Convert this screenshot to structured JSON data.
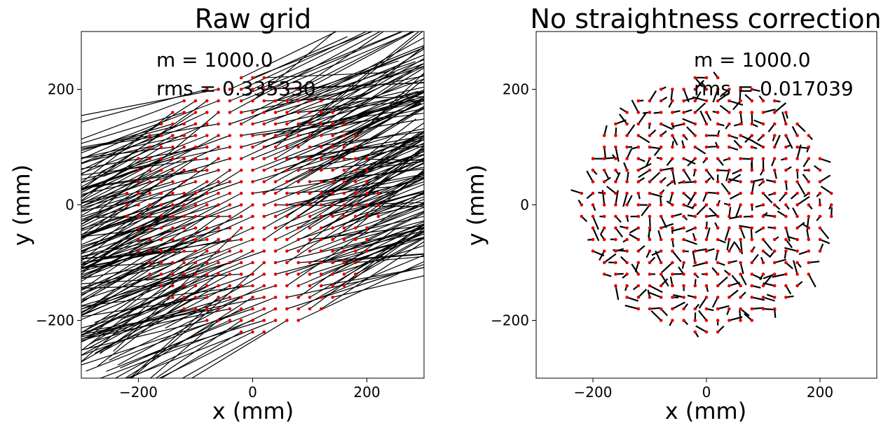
{
  "chart_data": [
    {
      "type": "scatter",
      "title": "Raw grid",
      "xlabel": "x (mm)",
      "ylabel": "y (mm)",
      "xlim": [
        -300,
        300
      ],
      "ylim": [
        -300,
        300
      ],
      "xticks": [
        -200,
        0,
        200
      ],
      "yticks": [
        -200,
        0,
        200
      ],
      "xtick_labels": [
        "−200",
        "0",
        "200"
      ],
      "ytick_labels": [
        "−200",
        "0",
        "200"
      ],
      "annotations": [
        "m = 1000.0",
        "rms = 0.335330"
      ],
      "grid": false,
      "grid_pitch": 20,
      "grid_radius": 220,
      "grid_angle_deg": 0,
      "grid_shear": 0.75,
      "grid_scale": 1.0,
      "marker_color": "#e00000",
      "vector_color": "#000000",
      "vector_style": "long_raw_residuals",
      "vector_line_width": 1.2
    },
    {
      "type": "scatter",
      "title": "No straightness correction",
      "xlabel": "x (mm)",
      "ylabel": "y (mm)",
      "xlim": [
        -300,
        300
      ],
      "ylim": [
        -300,
        300
      ],
      "xticks": [
        -200,
        0,
        200
      ],
      "yticks": [
        -200,
        0,
        200
      ],
      "xtick_labels": [
        "−200",
        "0",
        "200"
      ],
      "ytick_labels": [
        "−200",
        "0",
        "200"
      ],
      "annotations": [
        "m = 1000.0",
        "rms = 0.017039"
      ],
      "grid": false,
      "grid_pitch": 20,
      "grid_radius": 220,
      "grid_angle_deg": 0,
      "grid_shear": 0,
      "grid_scale": 1.0,
      "marker_color": "#e00000",
      "vector_color": "#000000",
      "vector_style": "short_corrected_residuals",
      "vector_line_width": 2.2
    }
  ]
}
